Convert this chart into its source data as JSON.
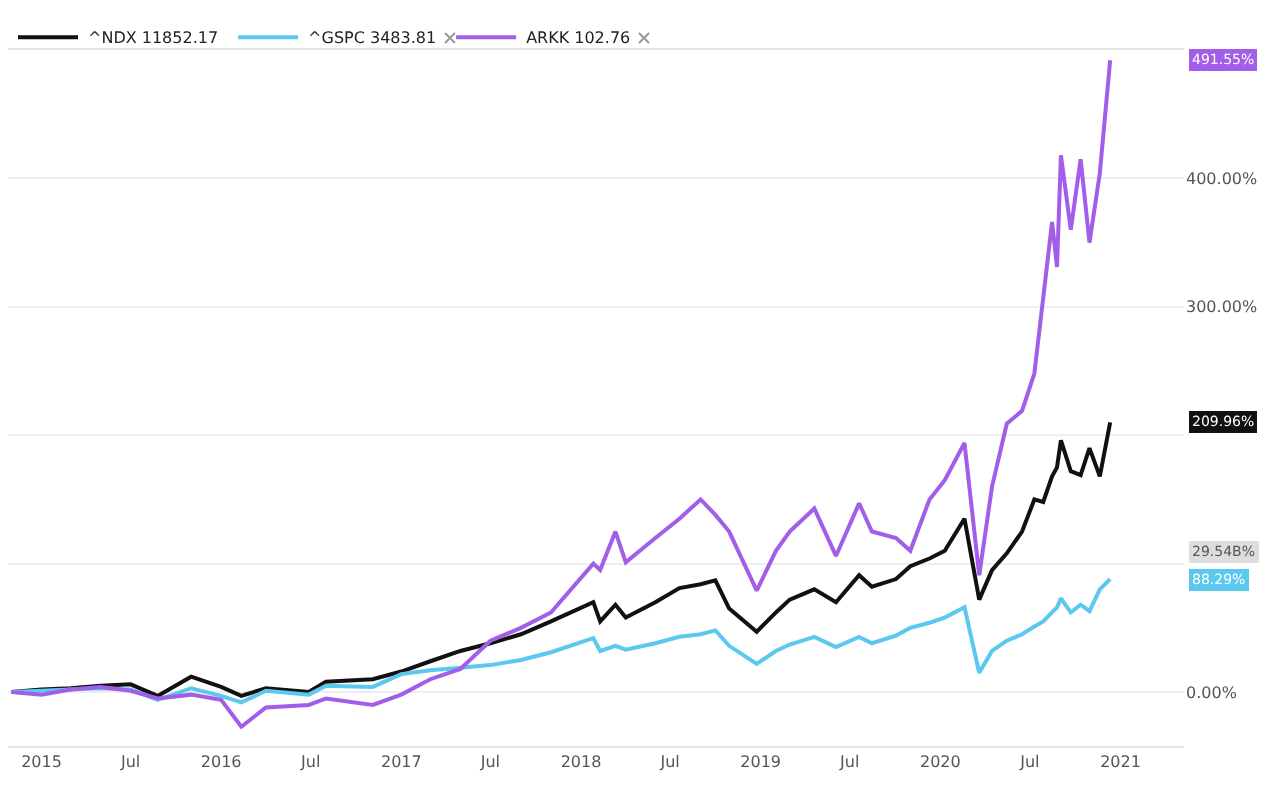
{
  "chart_data": {
    "type": "line",
    "x": [
      "2014-11-01",
      "2015-01-01",
      "2015-03-01",
      "2015-05-01",
      "2015-07-01",
      "2015-08-25",
      "2015-11-01",
      "2016-01-01",
      "2016-02-11",
      "2016-04-01",
      "2016-06-27",
      "2016-08-01",
      "2016-11-04",
      "2017-01-01",
      "2017-03-01",
      "2017-05-01",
      "2017-07-01",
      "2017-09-01",
      "2017-11-01",
      "2018-01-26",
      "2018-02-09",
      "2018-03-12",
      "2018-04-02",
      "2018-06-01",
      "2018-07-20",
      "2018-09-01",
      "2018-10-01",
      "2018-10-29",
      "2018-12-24",
      "2019-02-01",
      "2019-03-01",
      "2019-04-20",
      "2019-06-03",
      "2019-07-20",
      "2019-08-15",
      "2019-10-03",
      "2019-11-01",
      "2019-12-10",
      "2020-01-10",
      "2020-02-19",
      "2020-03-20",
      "2020-04-15",
      "2020-05-15",
      "2020-06-15",
      "2020-07-10",
      "2020-07-28",
      "2020-08-15",
      "2020-08-25",
      "2020-09-02",
      "2020-09-22",
      "2020-10-12",
      "2020-10-30",
      "2020-11-20",
      "2020-12-11"
    ],
    "ylim": [
      -42,
      500
    ],
    "yticks": [
      {
        "value": 0,
        "label": "0.00%"
      },
      {
        "value": 100,
        "label": null
      },
      {
        "value": 200,
        "label": null
      },
      {
        "value": 300,
        "label": "300.00%"
      },
      {
        "value": 400,
        "label": "400.00%"
      }
    ],
    "xlim": [
      "2014-10-25",
      "2021-05-10"
    ],
    "xticks": [
      {
        "value": "2015-01-01",
        "label": "2015"
      },
      {
        "value": "2015-07-01",
        "label": "Jul"
      },
      {
        "value": "2016-01-01",
        "label": "2016"
      },
      {
        "value": "2016-07-01",
        "label": "Jul"
      },
      {
        "value": "2017-01-01",
        "label": "2017"
      },
      {
        "value": "2017-07-01",
        "label": "Jul"
      },
      {
        "value": "2018-01-01",
        "label": "2018"
      },
      {
        "value": "2018-07-01",
        "label": "Jul"
      },
      {
        "value": "2019-01-01",
        "label": "2019"
      },
      {
        "value": "2019-07-01",
        "label": "Jul"
      },
      {
        "value": "2020-01-01",
        "label": "2020"
      },
      {
        "value": "2020-07-01",
        "label": "Jul"
      },
      {
        "value": "2021-01-01",
        "label": "2021"
      }
    ],
    "grid": "y",
    "legend": "top left",
    "series": [
      {
        "name": "^NDX 11852.17",
        "color": "#111111",
        "values": [
          0,
          2,
          3,
          5,
          6,
          -3,
          12,
          4,
          -3,
          3,
          0,
          8,
          10,
          16,
          24,
          32,
          38,
          45,
          55,
          70,
          55,
          68,
          58,
          70,
          81,
          84,
          87,
          65,
          47,
          62,
          72,
          80,
          70,
          91,
          82,
          88,
          98,
          104,
          110,
          135,
          72,
          95,
          108,
          125,
          150,
          148,
          168,
          175,
          196,
          172,
          169,
          190,
          168,
          210
        ]
      },
      {
        "name": "^GSPC 3483.81",
        "color": "#5bc8f0",
        "values": [
          0,
          1,
          2,
          3,
          2,
          -6,
          3,
          -3,
          -8,
          1,
          -2,
          5,
          4,
          14,
          17,
          19,
          21,
          25,
          31,
          42,
          32,
          36,
          33,
          38,
          43,
          45,
          48,
          36,
          22,
          32,
          37,
          43,
          35,
          43,
          38,
          44,
          50,
          54,
          58,
          66,
          15,
          32,
          40,
          45,
          51,
          55,
          62,
          66,
          73,
          62,
          68,
          63,
          80,
          88
        ]
      },
      {
        "name": "ARKK 102.76",
        "color": "#a25ee8",
        "values": [
          0,
          -2,
          2,
          4,
          1,
          -5,
          -2,
          -6,
          -27,
          -12,
          -10,
          -5,
          -10,
          -2,
          10,
          18,
          40,
          50,
          62,
          100,
          95,
          125,
          101,
          120,
          135,
          150,
          138,
          125,
          79,
          110,
          125,
          143,
          106,
          147,
          125,
          120,
          110,
          150,
          165,
          194,
          91,
          160,
          209,
          219,
          248,
          307,
          366,
          331,
          418,
          360,
          415,
          350,
          404,
          492
        ]
      }
    ],
    "annotations": [
      "209.96%",
      "88.29%",
      "491.55%",
      "29.54B%"
    ]
  }
}
